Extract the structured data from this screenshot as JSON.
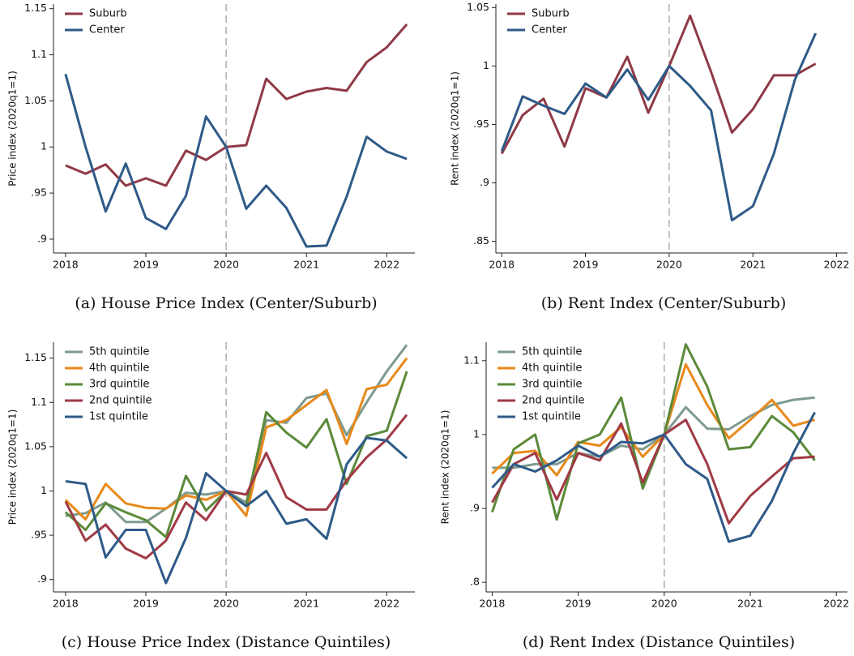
{
  "chart_data": [
    {
      "type": "line",
      "title": "(a) House Price Index (Center/Suburb)",
      "y_label": "Price index (2020q1=1)",
      "x": [
        2018,
        2018.25,
        2018.5,
        2018.75,
        2019,
        2019.25,
        2019.5,
        2019.75,
        2020,
        2020.25,
        2020.5,
        2020.75,
        2021,
        2021.25,
        2021.5,
        2021.75,
        2022,
        2022.25
      ],
      "series": [
        {
          "name": "Suburb",
          "color": "#8e3a46",
          "values": [
            0.98,
            0.971,
            0.981,
            0.958,
            0.966,
            0.958,
            0.996,
            0.986,
            1.0,
            1.002,
            1.074,
            1.052,
            1.06,
            1.064,
            1.061,
            1.092,
            1.108,
            1.133
          ]
        },
        {
          "name": "Center",
          "color": "#2e5a88",
          "values": [
            1.079,
            1.0,
            0.93,
            0.982,
            0.923,
            0.911,
            0.947,
            1.033,
            1.0,
            0.933,
            0.958,
            0.934,
            0.892,
            0.893,
            0.946,
            1.011,
            0.995,
            0.987
          ]
        }
      ],
      "xlim": [
        2017.85,
        2022.35
      ],
      "ylim": [
        0.885,
        1.155
      ],
      "xticks": [
        2018,
        2019,
        2020,
        2021,
        2022
      ],
      "yticks": [
        1.15,
        1.1,
        1.05,
        1,
        {
          "value": 0.95,
          "label": ".95"
        },
        {
          "value": 0.9,
          "label": ".9"
        }
      ],
      "vline": 2020,
      "legend": "upper left"
    },
    {
      "type": "line",
      "title": "(b) Rent Index (Center/Suburb)",
      "y_label": "Rent index (2020q1=1)",
      "x": [
        2018,
        2018.25,
        2018.5,
        2018.75,
        2019,
        2019.25,
        2019.5,
        2019.75,
        2020,
        2020.25,
        2020.5,
        2020.75,
        2021,
        2021.25,
        2021.5,
        2021.75
      ],
      "series": [
        {
          "name": "Suburb",
          "color": "#8e3a46",
          "values": [
            0.925,
            0.958,
            0.972,
            0.931,
            0.981,
            0.973,
            1.008,
            0.96,
            1.0,
            1.043,
            0.995,
            0.943,
            0.963,
            0.992,
            0.992,
            1.002
          ]
        },
        {
          "name": "Center",
          "color": "#2e5a88",
          "values": [
            0.927,
            0.974,
            0.966,
            0.959,
            0.985,
            0.973,
            0.997,
            0.971,
            1.0,
            0.983,
            0.962,
            0.868,
            0.88,
            0.925,
            0.988,
            1.028
          ]
        }
      ],
      "xlim": [
        2017.93,
        2022.13
      ],
      "ylim": [
        0.84,
        1.053
      ],
      "xticks": [
        2018,
        2019,
        2020,
        2021,
        2022
      ],
      "yticks": [
        1.05,
        1,
        {
          "value": 0.95,
          "label": ".95"
        },
        {
          "value": 0.9,
          "label": ".9"
        },
        {
          "value": 0.85,
          "label": ".85"
        }
      ],
      "vline": 2020,
      "legend": "upper left"
    },
    {
      "type": "line",
      "title": "(c) House Price Index (Distance Quintiles)",
      "y_label": "Price index (2020q1=1)",
      "x": [
        2018,
        2018.25,
        2018.5,
        2018.75,
        2019,
        2019.25,
        2019.5,
        2019.75,
        2020,
        2020.25,
        2020.5,
        2020.75,
        2021,
        2021.25,
        2021.5,
        2021.75,
        2022,
        2022.25
      ],
      "series": [
        {
          "name": "5th quintile",
          "color": "#7f9a8e",
          "values": [
            0.972,
            0.975,
            0.987,
            0.965,
            0.965,
            0.98,
            0.998,
            0.996,
            1.0,
            0.987,
            1.08,
            1.077,
            1.105,
            1.11,
            1.063,
            1.1,
            1.135,
            1.165
          ]
        },
        {
          "name": "4th quintile",
          "color": "#e8891b",
          "values": [
            0.99,
            0.968,
            1.008,
            0.986,
            0.981,
            0.98,
            0.995,
            0.99,
            1.0,
            0.972,
            1.072,
            1.08,
            1.097,
            1.114,
            1.053,
            1.115,
            1.12,
            1.15
          ]
        },
        {
          "name": "3rd quintile",
          "color": "#5b8a3a",
          "values": [
            0.976,
            0.956,
            0.986,
            0.976,
            0.967,
            0.948,
            1.017,
            0.978,
            1.0,
            0.983,
            1.089,
            1.066,
            1.049,
            1.081,
            1.008,
            1.062,
            1.068,
            1.135
          ]
        },
        {
          "name": "2nd quintile",
          "color": "#a03a45",
          "values": [
            0.988,
            0.944,
            0.962,
            0.935,
            0.924,
            0.944,
            0.987,
            0.967,
            1.0,
            0.996,
            1.043,
            0.993,
            0.979,
            0.979,
            1.012,
            1.038,
            1.058,
            1.086
          ]
        },
        {
          "name": "1st quintile",
          "color": "#2e5a88",
          "values": [
            1.011,
            1.008,
            0.925,
            0.956,
            0.956,
            0.896,
            0.947,
            1.02,
            1.0,
            0.983,
            1.0,
            0.963,
            0.968,
            0.946,
            1.03,
            1.06,
            1.057,
            1.037
          ]
        }
      ],
      "xlim": [
        2017.85,
        2022.35
      ],
      "ylim": [
        0.886,
        1.168
      ],
      "xticks": [
        2018,
        2019,
        2020,
        2021,
        2022
      ],
      "yticks": [
        1.15,
        1.1,
        1.05,
        1,
        {
          "value": 0.95,
          "label": ".95"
        },
        {
          "value": 0.9,
          "label": ".9"
        }
      ],
      "vline": 2020,
      "legend": "upper left"
    },
    {
      "type": "line",
      "title": "(d) Rent Index (Distance Quintiles)",
      "y_label": "Rent index (2020q1=1)",
      "x": [
        2018,
        2018.25,
        2018.5,
        2018.75,
        2019,
        2019.25,
        2019.5,
        2019.75,
        2020,
        2020.25,
        2020.5,
        2020.75,
        2021,
        2021.25,
        2021.5,
        2021.75
      ],
      "series": [
        {
          "name": "5th quintile",
          "color": "#7f9a8e",
          "values": [
            0.955,
            0.955,
            0.96,
            0.96,
            0.975,
            0.97,
            0.985,
            0.98,
            1.0,
            1.037,
            1.008,
            1.007,
            1.025,
            1.04,
            1.047,
            1.05
          ]
        },
        {
          "name": "4th quintile",
          "color": "#e8891b",
          "values": [
            0.947,
            0.975,
            0.978,
            0.945,
            0.99,
            0.985,
            1.01,
            0.97,
            1.0,
            1.095,
            1.04,
            0.995,
            1.02,
            1.047,
            1.012,
            1.02
          ]
        },
        {
          "name": "3rd quintile",
          "color": "#5b8a3a",
          "values": [
            0.895,
            0.98,
            1.0,
            0.885,
            0.988,
            1.0,
            1.05,
            0.927,
            1.0,
            1.122,
            1.065,
            0.98,
            0.983,
            1.025,
            1.003,
            0.965
          ]
        },
        {
          "name": "2nd quintile",
          "color": "#a03a45",
          "values": [
            0.908,
            0.96,
            0.975,
            0.912,
            0.975,
            0.965,
            1.015,
            0.935,
            1.0,
            1.02,
            0.96,
            0.88,
            0.917,
            0.943,
            0.968,
            0.97
          ]
        },
        {
          "name": "1st quintile",
          "color": "#2e5a88",
          "values": [
            0.928,
            0.96,
            0.95,
            0.965,
            0.985,
            0.97,
            0.99,
            0.988,
            1.0,
            0.96,
            0.94,
            0.855,
            0.863,
            0.91,
            0.975,
            1.03
          ]
        }
      ],
      "xlim": [
        2017.93,
        2022.13
      ],
      "ylim": [
        0.787,
        1.125
      ],
      "xticks": [
        2018,
        2019,
        2020,
        2021,
        2022
      ],
      "yticks": [
        1.1,
        1,
        {
          "value": 0.9,
          "label": ".9"
        },
        {
          "value": 0.8,
          "label": ".8"
        }
      ],
      "vline": 2020,
      "legend": "upper left"
    }
  ]
}
